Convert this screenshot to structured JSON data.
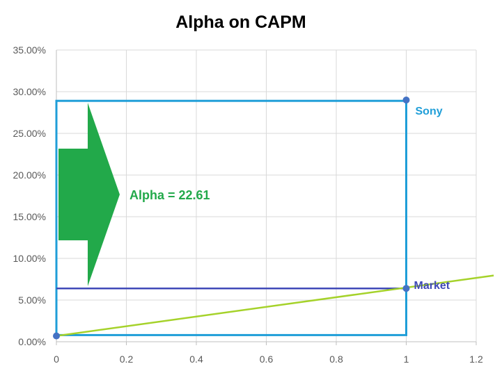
{
  "chart_data": {
    "type": "scatter",
    "title": "Alpha on CAPM",
    "xlim": [
      0,
      1.2
    ],
    "ylim": [
      0,
      0.35
    ],
    "x_ticks": [
      0,
      0.2,
      0.4,
      0.6,
      0.8,
      1,
      1.2
    ],
    "x_tick_labels": [
      "0",
      "0.2",
      "0.4",
      "0.6",
      "0.8",
      "1",
      "1.2"
    ],
    "y_ticks": [
      0,
      0.05,
      0.1,
      0.15,
      0.2,
      0.25,
      0.3,
      0.35
    ],
    "y_tick_labels": [
      "0.00%",
      "5.00%",
      "10.00%",
      "15.00%",
      "20.00%",
      "25.00%",
      "30.00%",
      "35.00%"
    ],
    "grid": true,
    "points": [
      {
        "label": "",
        "x": 0,
        "y": 0.007
      },
      {
        "label": "Sony",
        "x": 1,
        "y": 0.29
      },
      {
        "label": "Market",
        "x": 1,
        "y": 0.064
      }
    ],
    "sml_line": {
      "x": [
        0,
        1.25
      ],
      "y": [
        0.007,
        0.0795
      ]
    },
    "sony_box": {
      "x0": 0,
      "x1": 1,
      "y0": 0.008,
      "y1": 0.289
    },
    "market_hline": {
      "x0": 0,
      "x1": 1,
      "y": 0.064
    },
    "annotation": {
      "text": "Alpha = 22.61"
    },
    "colors": {
      "points": "#4472C4",
      "sony": "#1F9ED8",
      "market": "#3F49B8",
      "sml": "#A5D22A",
      "alpha": "#22A94A",
      "grid": "#D9D9D9",
      "axis": "#BFBFBF"
    }
  }
}
